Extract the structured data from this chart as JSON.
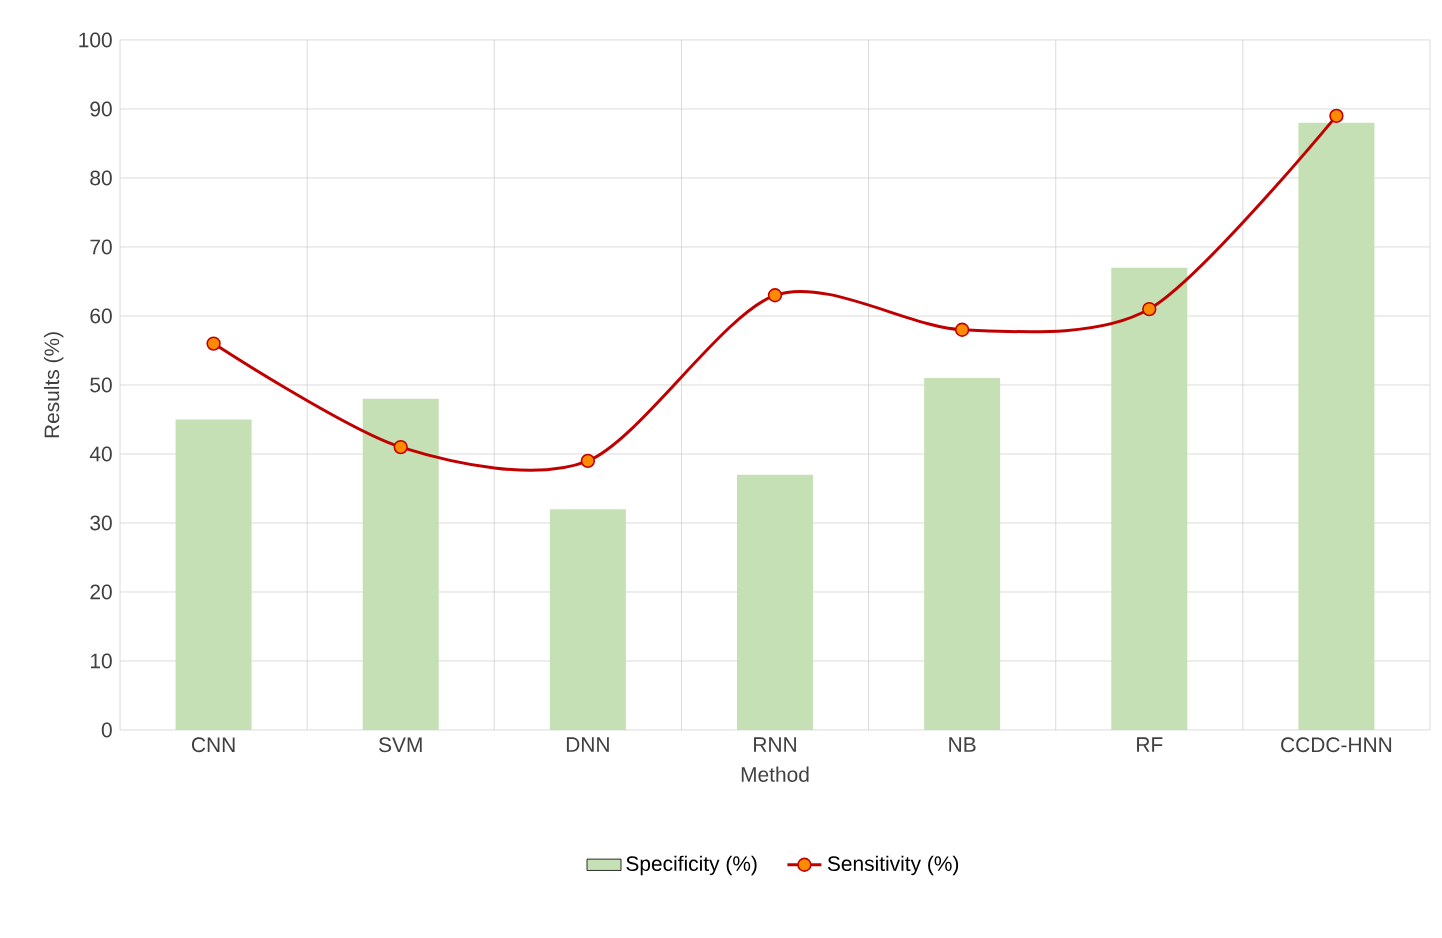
{
  "chart_data": {
    "type": "bar",
    "xlabel": "Method",
    "ylabel": "Results (%)",
    "categories": [
      "CNN",
      "SVM",
      "DNN",
      "RNN",
      "NB",
      "RF",
      "CCDC-HNN"
    ],
    "series": [
      {
        "name": "Specificity (%)",
        "color": "#c5e0b4",
        "values": [
          45,
          48,
          32,
          37,
          51,
          67,
          88
        ]
      },
      {
        "name": "Sensitivity (%)",
        "type": "line",
        "color": "#c00000",
        "marker": "circle",
        "values": [
          56,
          41,
          39,
          63,
          58,
          61,
          89
        ]
      }
    ],
    "ylim": [
      0,
      100
    ],
    "yticks": [
      0,
      10,
      20,
      30,
      40,
      50,
      60,
      70,
      80,
      90,
      100
    ],
    "grid": true,
    "legend": "bottom"
  }
}
